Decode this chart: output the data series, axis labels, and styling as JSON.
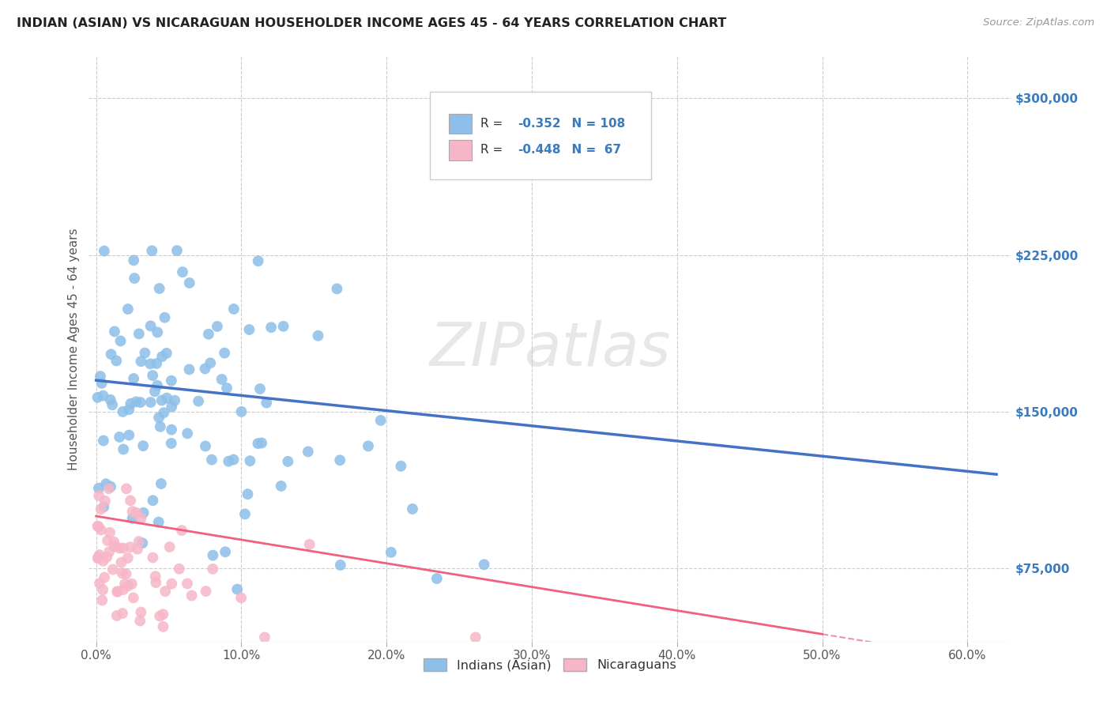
{
  "title": "INDIAN (ASIAN) VS NICARAGUAN HOUSEHOLDER INCOME AGES 45 - 64 YEARS CORRELATION CHART",
  "source": "Source: ZipAtlas.com",
  "ylabel": "Householder Income Ages 45 - 64 years",
  "xlabel_ticks": [
    "0.0%",
    "10.0%",
    "20.0%",
    "30.0%",
    "40.0%",
    "50.0%",
    "60.0%"
  ],
  "xlabel_vals": [
    0.0,
    0.1,
    0.2,
    0.3,
    0.4,
    0.5,
    0.6
  ],
  "ytick_labels": [
    "$75,000",
    "$150,000",
    "$225,000",
    "$300,000"
  ],
  "ytick_vals": [
    75000,
    150000,
    225000,
    300000
  ],
  "ylim": [
    40000,
    320000
  ],
  "xlim": [
    -0.005,
    0.63
  ],
  "legend_r_indian": "-0.352",
  "legend_n_indian": "108",
  "legend_r_nicaraguan": "-0.448",
  "legend_n_nicaraguan": "67",
  "indian_color": "#8dbfe8",
  "nicaraguan_color": "#f7b6c8",
  "indian_line_color": "#4472c4",
  "nicaraguan_line_color": "#f06080",
  "watermark": "ZIPatlas",
  "background_color": "#ffffff"
}
